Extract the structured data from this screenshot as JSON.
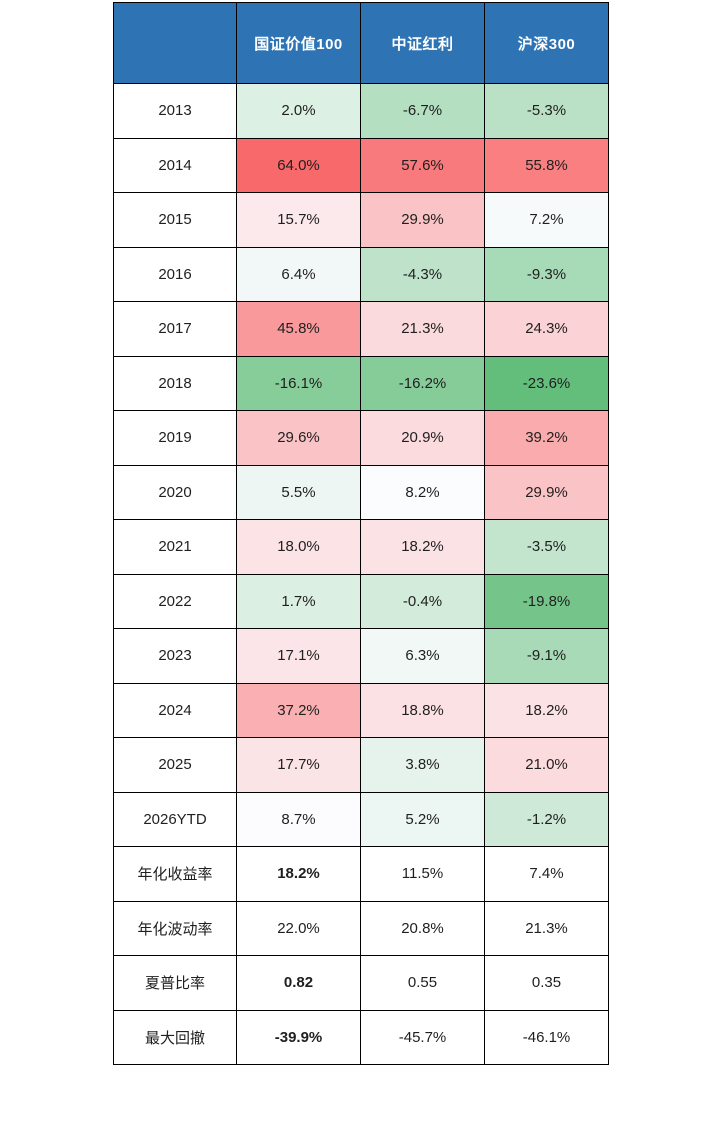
{
  "colors": {
    "page_bg": "#ffffff",
    "header_bg": "#2E74B5",
    "header_text": "#ffffff",
    "border": "#000000",
    "cell_text": "#1f1f1f",
    "scale_min_color": "#63BE7B",
    "scale_mid_color": "#FCFCFF",
    "scale_max_color": "#F8696B"
  },
  "chart_data": {
    "type": "heatmap",
    "title": "",
    "legend": "none",
    "corner_label": "",
    "columns": [
      "国证价值100",
      "中证红利",
      "沪深300"
    ],
    "color_scale": {
      "min": -23.6,
      "mid": 8.45,
      "max": 64.0,
      "min_color": "#63BE7B",
      "mid_color": "#FCFCFF",
      "max_color": "#F8696B"
    },
    "rows": [
      {
        "label": "2013",
        "display": [
          "2.0%",
          "-6.7%",
          "-5.3%"
        ],
        "values": [
          2.0,
          -6.7,
          -5.3
        ],
        "heat": true,
        "bold": [
          false,
          false,
          false
        ]
      },
      {
        "label": "2014",
        "display": [
          "64.0%",
          "57.6%",
          "55.8%"
        ],
        "values": [
          64.0,
          57.6,
          55.8
        ],
        "heat": true,
        "bold": [
          false,
          false,
          false
        ]
      },
      {
        "label": "2015",
        "display": [
          "15.7%",
          "29.9%",
          "7.2%"
        ],
        "values": [
          15.7,
          29.9,
          7.2
        ],
        "heat": true,
        "bold": [
          false,
          false,
          false
        ]
      },
      {
        "label": "2016",
        "display": [
          "6.4%",
          "-4.3%",
          "-9.3%"
        ],
        "values": [
          6.4,
          -4.3,
          -9.3
        ],
        "heat": true,
        "bold": [
          false,
          false,
          false
        ]
      },
      {
        "label": "2017",
        "display": [
          "45.8%",
          "21.3%",
          "24.3%"
        ],
        "values": [
          45.8,
          21.3,
          24.3
        ],
        "heat": true,
        "bold": [
          false,
          false,
          false
        ]
      },
      {
        "label": "2018",
        "display": [
          "-16.1%",
          "-16.2%",
          "-23.6%"
        ],
        "values": [
          -16.1,
          -16.2,
          -23.6
        ],
        "heat": true,
        "bold": [
          false,
          false,
          false
        ]
      },
      {
        "label": "2019",
        "display": [
          "29.6%",
          "20.9%",
          "39.2%"
        ],
        "values": [
          29.6,
          20.9,
          39.2
        ],
        "heat": true,
        "bold": [
          false,
          false,
          false
        ]
      },
      {
        "label": "2020",
        "display": [
          "5.5%",
          "8.2%",
          "29.9%"
        ],
        "values": [
          5.5,
          8.2,
          29.9
        ],
        "heat": true,
        "bold": [
          false,
          false,
          false
        ]
      },
      {
        "label": "2021",
        "display": [
          "18.0%",
          "18.2%",
          "-3.5%"
        ],
        "values": [
          18.0,
          18.2,
          -3.5
        ],
        "heat": true,
        "bold": [
          false,
          false,
          false
        ]
      },
      {
        "label": "2022",
        "display": [
          "1.7%",
          "-0.4%",
          "-19.8%"
        ],
        "values": [
          1.7,
          -0.4,
          -19.8
        ],
        "heat": true,
        "bold": [
          false,
          false,
          false
        ]
      },
      {
        "label": "2023",
        "display": [
          "17.1%",
          "6.3%",
          "-9.1%"
        ],
        "values": [
          17.1,
          6.3,
          -9.1
        ],
        "heat": true,
        "bold": [
          false,
          false,
          false
        ]
      },
      {
        "label": "2024",
        "display": [
          "37.2%",
          "18.8%",
          "18.2%"
        ],
        "values": [
          37.2,
          18.8,
          18.2
        ],
        "heat": true,
        "bold": [
          false,
          false,
          false
        ]
      },
      {
        "label": "2025",
        "display": [
          "17.7%",
          "3.8%",
          "21.0%"
        ],
        "values": [
          17.7,
          3.8,
          21.0
        ],
        "heat": true,
        "bold": [
          false,
          false,
          false
        ]
      },
      {
        "label": "2026YTD",
        "display": [
          "8.7%",
          "5.2%",
          "-1.2%"
        ],
        "values": [
          8.7,
          5.2,
          -1.2
        ],
        "heat": true,
        "bold": [
          false,
          false,
          false
        ]
      },
      {
        "label": "年化收益率",
        "display": [
          "18.2%",
          "11.5%",
          "7.4%"
        ],
        "values": [
          18.2,
          11.5,
          7.4
        ],
        "heat": false,
        "bold": [
          true,
          false,
          false
        ]
      },
      {
        "label": "年化波动率",
        "display": [
          "22.0%",
          "20.8%",
          "21.3%"
        ],
        "values": [
          22.0,
          20.8,
          21.3
        ],
        "heat": false,
        "bold": [
          false,
          false,
          false
        ]
      },
      {
        "label": "夏普比率",
        "display": [
          "0.82",
          "0.55",
          "0.35"
        ],
        "values": [
          0.82,
          0.55,
          0.35
        ],
        "heat": false,
        "bold": [
          true,
          false,
          false
        ]
      },
      {
        "label": "最大回撤",
        "display": [
          "-39.9%",
          "-45.7%",
          "-46.1%"
        ],
        "values": [
          -39.9,
          -45.7,
          -46.1
        ],
        "heat": false,
        "bold": [
          true,
          false,
          false
        ]
      }
    ]
  }
}
